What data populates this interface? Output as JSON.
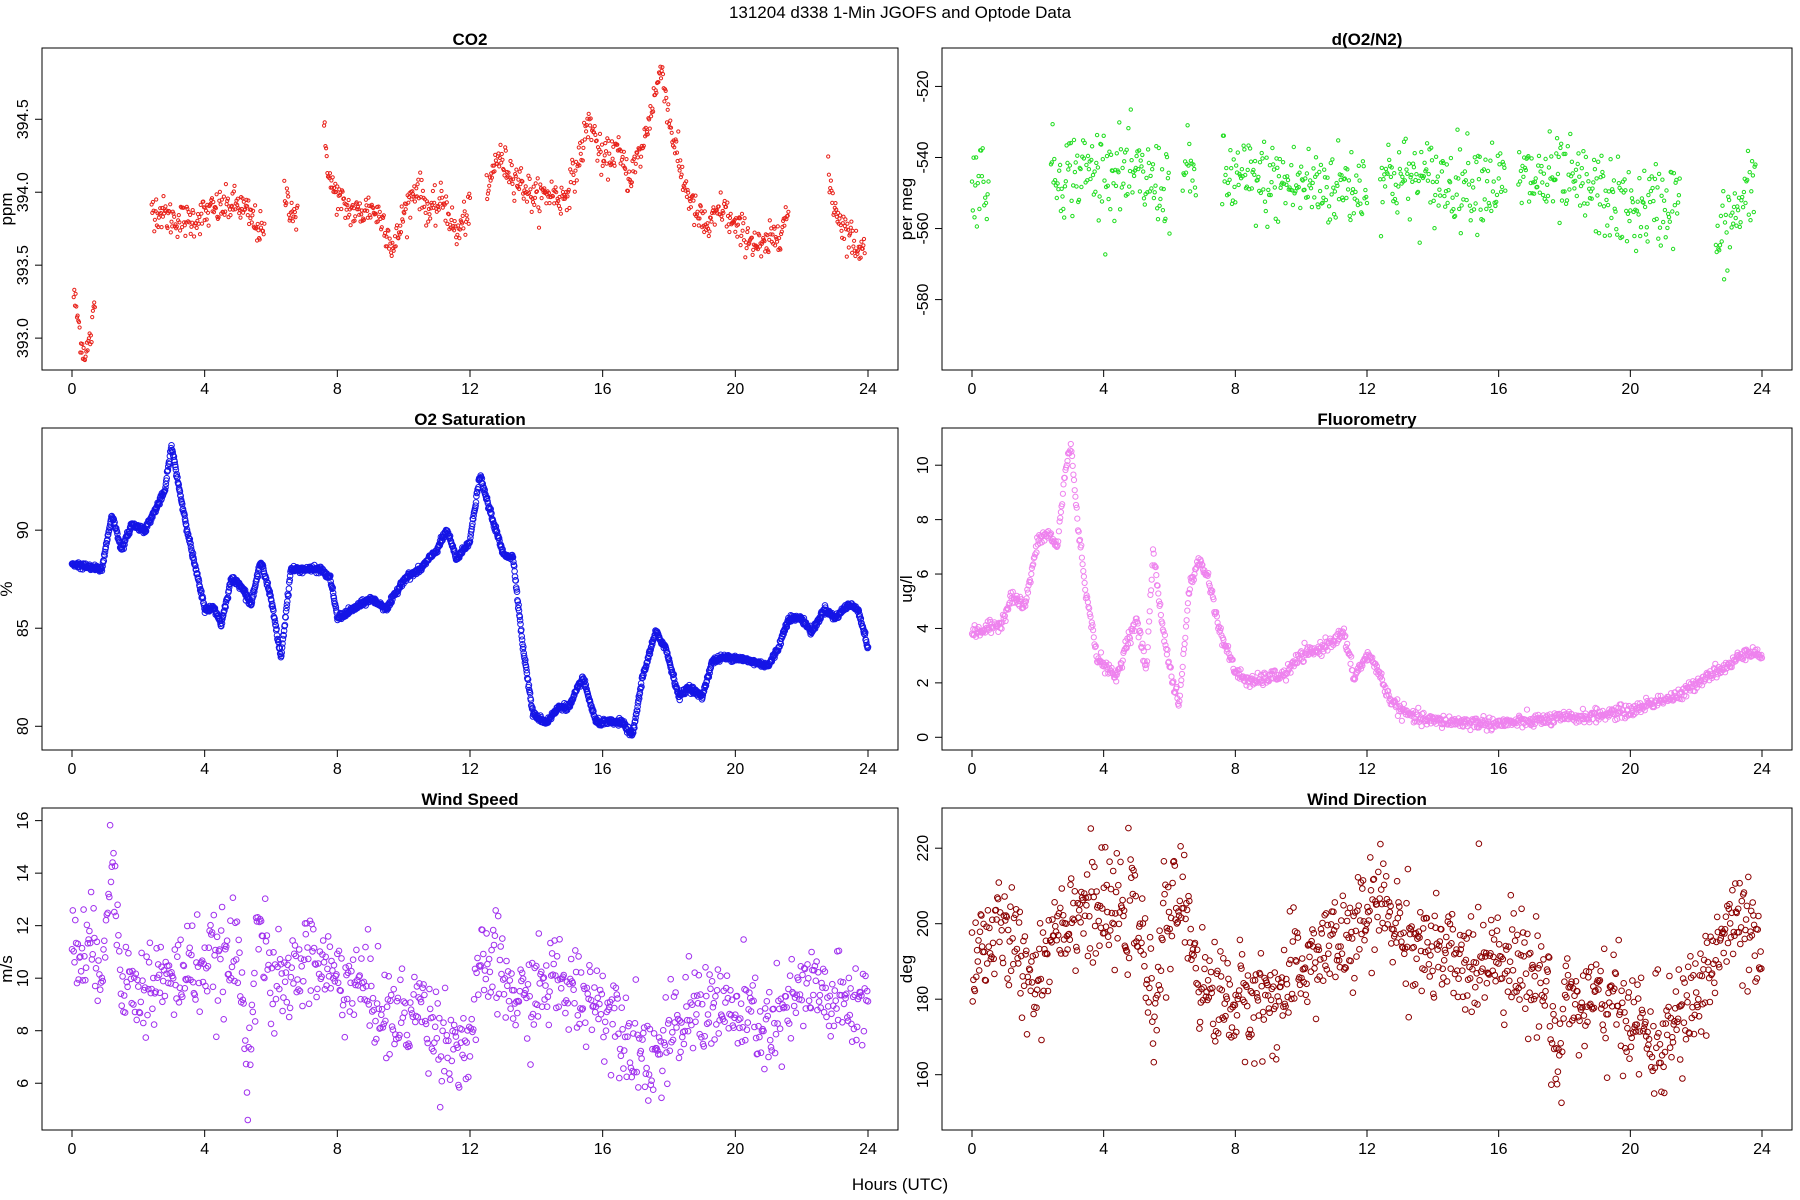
{
  "figure": {
    "title": "131204   d338   1-Min  JGOFS and Optode Data",
    "xlabel": "Hours (UTC)"
  },
  "chart_data": [
    {
      "id": "co2",
      "type": "scatter",
      "title": "CO2",
      "xlabel": "Hours (UTC)",
      "ylabel": "ppm",
      "color": "#e8221b",
      "xlim": [
        0,
        24
      ],
      "ylim": [
        392.85,
        394.92
      ],
      "xticks": [
        "0",
        "4",
        "8",
        "12",
        "16",
        "20",
        "24"
      ],
      "yticks": [
        "393.0",
        "393.5",
        "394.0",
        "394.5"
      ],
      "segments": [
        {
          "x": [
            0.05,
            0.2,
            0.3,
            0.4,
            0.5,
            0.6,
            0.7
          ],
          "y": [
            393.3,
            393.1,
            392.95,
            392.88,
            392.95,
            393.05,
            393.25
          ]
        },
        {
          "x": [
            2.4,
            3.0,
            3.5,
            4.0,
            4.5,
            5.0,
            5.5,
            5.8
          ],
          "y": [
            393.9,
            393.82,
            393.8,
            393.85,
            393.9,
            393.92,
            393.8,
            393.7
          ]
        },
        {
          "x": [
            6.4,
            6.6,
            6.8
          ],
          "y": [
            394.0,
            393.9,
            393.82
          ]
        },
        {
          "x": [
            7.6,
            7.8,
            8.2,
            8.6,
            9.0,
            9.4,
            9.7,
            10.0,
            10.4,
            10.8,
            11.2,
            11.6,
            12.0
          ],
          "y": [
            394.4,
            394.05,
            393.9,
            393.85,
            393.9,
            393.8,
            393.6,
            393.85,
            394.05,
            393.85,
            393.95,
            393.7,
            393.9
          ]
        },
        {
          "x": [
            12.5,
            12.8,
            13.2,
            13.6,
            14.0,
            14.4,
            14.8,
            15.2,
            15.6,
            16.0,
            16.4,
            16.8,
            17.2,
            17.6,
            17.8,
            18.0,
            18.4,
            18.8,
            19.2,
            19.6,
            20.0,
            20.4,
            20.8,
            21.2,
            21.6
          ],
          "y": [
            393.95,
            394.25,
            394.15,
            394.05,
            393.95,
            394.0,
            393.95,
            394.15,
            394.5,
            394.2,
            394.3,
            394.1,
            394.3,
            394.7,
            394.85,
            394.5,
            394.1,
            393.85,
            393.75,
            393.9,
            393.75,
            393.7,
            393.6,
            393.7,
            393.85
          ]
        },
        {
          "x": [
            22.8,
            23.0,
            23.3,
            23.6,
            23.9
          ],
          "y": [
            394.1,
            393.9,
            393.75,
            393.65,
            393.6
          ]
        }
      ]
    },
    {
      "id": "do2n2",
      "type": "scatter",
      "title": "d(O2/N2)",
      "xlabel": "Hours (UTC)",
      "ylabel": "per meg",
      "color": "#22dd22",
      "xlim": [
        0,
        24
      ],
      "ylim": [
        -597,
        -512
      ],
      "xticks": [
        "0",
        "4",
        "8",
        "12",
        "16",
        "20",
        "24"
      ],
      "yticks": [
        "-520",
        "-540",
        "-560",
        "-580"
      ],
      "yticklabels": [
        "-520",
        "-540",
        "-560",
        "-580"
      ],
      "ytickvals": [
        -520,
        -540,
        -560,
        -580
      ],
      "segments": [
        {
          "x": [
            0.0,
            0.5
          ],
          "y": [
            -546,
            -546
          ]
        },
        {
          "x": [
            2.4,
            4.0,
            5.0,
            6.0
          ],
          "y": [
            -545,
            -543,
            -546,
            -548
          ]
        },
        {
          "x": [
            6.4,
            6.8
          ],
          "y": [
            -545,
            -545
          ]
        },
        {
          "x": [
            7.6,
            9.0,
            10.5,
            12.0
          ],
          "y": [
            -546,
            -547,
            -548,
            -548
          ]
        },
        {
          "x": [
            12.4,
            14.0,
            15.5,
            16.2
          ],
          "y": [
            -545,
            -547,
            -546,
            -548
          ]
        },
        {
          "x": [
            16.6,
            18.0,
            19.0,
            20.0,
            21.0,
            21.5
          ],
          "y": [
            -546,
            -547,
            -550,
            -555,
            -553,
            -552
          ]
        },
        {
          "x": [
            22.6,
            23.2,
            23.8
          ],
          "y": [
            -565,
            -556,
            -548
          ]
        }
      ]
    },
    {
      "id": "o2sat",
      "type": "scatter",
      "title": "O2 Saturation",
      "xlabel": "Hours (UTC)",
      "ylabel": "%",
      "color": "#1515e6",
      "xlim": [
        0,
        24
      ],
      "ylim": [
        79.3,
        94.7
      ],
      "xticks": [
        "0",
        "4",
        "8",
        "12",
        "16",
        "20",
        "24"
      ],
      "yticks": [
        "80",
        "85",
        "90"
      ],
      "segments": [
        {
          "x": [
            0,
            0.5,
            0.9,
            1.2,
            1.5,
            1.8,
            2.2,
            2.5,
            2.8,
            3.0,
            3.3,
            3.6,
            4.0,
            4.3,
            4.5,
            4.8,
            5.1,
            5.4,
            5.7,
            6.0,
            6.3,
            6.6,
            7.0,
            7.5,
            7.8,
            8.0,
            8.5,
            9.0,
            9.5,
            10.0,
            10.5,
            11.0,
            11.3,
            11.6,
            12.0,
            12.3,
            12.6,
            13.0,
            13.3,
            13.6,
            13.9,
            14.3,
            14.7,
            15.0,
            15.4,
            15.8,
            16.2,
            16.6,
            16.9,
            17.2,
            17.6,
            17.9,
            18.3,
            18.6,
            19.0,
            19.3,
            19.6,
            20.0,
            20.5,
            21.0,
            21.3,
            21.6,
            22.0,
            22.3,
            22.7,
            23.0,
            23.4,
            23.7,
            24.0
          ],
          "y": [
            88.3,
            88.1,
            88.0,
            90.8,
            89.0,
            90.3,
            90.0,
            91.0,
            92.0,
            94.3,
            91.5,
            89.0,
            86.0,
            86.0,
            85.2,
            87.5,
            87.2,
            86.2,
            88.5,
            86.5,
            83.5,
            88.0,
            88.0,
            88.0,
            87.5,
            85.5,
            86.0,
            86.5,
            86.0,
            87.5,
            88.0,
            89.0,
            90.0,
            88.5,
            89.5,
            92.8,
            91.0,
            88.8,
            88.6,
            84.0,
            80.6,
            80.2,
            81.0,
            81.0,
            82.5,
            80.2,
            80.2,
            80.2,
            79.5,
            82.5,
            84.8,
            84.0,
            81.5,
            82.0,
            81.5,
            83.3,
            83.5,
            83.5,
            83.3,
            83.1,
            84.0,
            85.5,
            85.5,
            84.8,
            86.0,
            85.5,
            86.2,
            86.0,
            84.0
          ]
        }
      ]
    },
    {
      "id": "fluor",
      "type": "scatter",
      "title": "Fluorometry",
      "xlabel": "Hours (UTC)",
      "ylabel": "ug/l",
      "color": "#ee82ee",
      "xlim": [
        0,
        24
      ],
      "ylim": [
        -0.1,
        11.0
      ],
      "xticks": [
        "0",
        "4",
        "8",
        "12",
        "16",
        "20",
        "24"
      ],
      "yticks": [
        "0",
        "2",
        "4",
        "6",
        "8",
        "10"
      ],
      "segments": [
        {
          "x": [
            0,
            0.5,
            0.9,
            1.2,
            1.6,
            2.0,
            2.3,
            2.6,
            2.8,
            3.0,
            3.2,
            3.5,
            3.8,
            4.1,
            4.4,
            4.7,
            5.0,
            5.3,
            5.5,
            5.8,
            6.1,
            6.3,
            6.6,
            6.9,
            7.2,
            7.5,
            8.0,
            8.5,
            9.0,
            9.5,
            10.0,
            10.5,
            11.0,
            11.3,
            11.6,
            12.0,
            12.3,
            12.6,
            13.0,
            13.5,
            14.0,
            15.0,
            16.0,
            17.0,
            18.0,
            19.0,
            19.5,
            20.0,
            20.5,
            21.0,
            21.5,
            22.0,
            22.5,
            23.0,
            23.5,
            24.0
          ],
          "y": [
            3.8,
            4.0,
            4.2,
            5.2,
            4.8,
            7.2,
            7.5,
            7.0,
            9.5,
            10.8,
            8.0,
            5.0,
            3.0,
            2.5,
            2.2,
            3.5,
            4.3,
            2.5,
            6.8,
            4.0,
            2.0,
            1.2,
            5.5,
            6.5,
            5.8,
            4.0,
            2.4,
            2.0,
            2.2,
            2.3,
            3.0,
            3.2,
            3.6,
            3.8,
            2.2,
            3.0,
            2.6,
            1.6,
            1.0,
            0.7,
            0.6,
            0.55,
            0.5,
            0.6,
            0.7,
            0.8,
            0.9,
            0.95,
            1.2,
            1.4,
            1.5,
            2.0,
            2.4,
            2.6,
            3.2,
            3.0
          ]
        }
      ]
    },
    {
      "id": "windspeed",
      "type": "scatter",
      "title": "Wind Speed",
      "xlabel": "Hours (UTC)",
      "ylabel": "m/s",
      "color": "#a030ee",
      "xlim": [
        0,
        24
      ],
      "ylim": [
        4.6,
        16.1
      ],
      "xticks": [
        "0",
        "4",
        "8",
        "12",
        "16",
        "20",
        "24"
      ],
      "yticks": [
        "6",
        "8",
        "10",
        "12",
        "14",
        "16"
      ],
      "segments": [
        {
          "x": [
            0,
            0.5,
            0.9,
            1.2,
            1.5,
            1.8,
            2.2,
            2.6,
            3.0,
            3.5,
            4.0,
            4.5,
            5.0,
            5.3,
            5.6,
            6.0,
            6.5,
            7.0,
            7.5,
            8.0,
            8.5,
            9.0,
            9.5,
            10.0,
            10.5,
            11.0,
            11.5,
            12.0,
            12.4,
            12.8,
            13.2,
            13.6,
            14.0,
            14.5,
            15.0,
            15.5,
            16.0,
            16.5,
            17.0,
            17.5,
            18.0,
            18.5,
            19.0,
            19.5,
            20.0,
            20.5,
            21.0,
            21.5,
            22.0,
            22.5,
            23.0,
            23.5,
            24.0
          ],
          "y": [
            11.0,
            11.0,
            10.8,
            14.5,
            10.5,
            9.5,
            9.5,
            10.0,
            9.8,
            10.5,
            10.5,
            10.5,
            11.0,
            6.5,
            12.5,
            9.5,
            9.8,
            10.8,
            10.5,
            10.0,
            9.8,
            9.5,
            8.5,
            8.5,
            9.0,
            8.0,
            7.5,
            7.5,
            10.5,
            10.5,
            9.5,
            9.0,
            9.5,
            10.0,
            9.5,
            9.5,
            9.0,
            8.5,
            7.5,
            7.0,
            7.5,
            8.5,
            9.0,
            9.0,
            8.5,
            8.5,
            8.0,
            8.5,
            9.5,
            9.5,
            9.0,
            9.0,
            9.0
          ]
        }
      ]
    },
    {
      "id": "winddir",
      "type": "scatter",
      "title": "Wind Direction",
      "xlabel": "Hours (UTC)",
      "ylabel": "deg",
      "color": "#8b0000",
      "xlim": [
        0,
        24
      ],
      "ylim": [
        148,
        228
      ],
      "xticks": [
        "0",
        "4",
        "8",
        "12",
        "16",
        "20",
        "24"
      ],
      "yticks": [
        "160",
        "180",
        "200",
        "220"
      ],
      "segments": [
        {
          "x": [
            0,
            0.5,
            1.0,
            1.5,
            2.0,
            2.5,
            3.0,
            3.5,
            4.0,
            4.5,
            5.0,
            5.5,
            5.8,
            6.0,
            6.3,
            6.6,
            7.0,
            7.5,
            8.0,
            8.5,
            9.0,
            9.5,
            10.0,
            10.5,
            11.0,
            11.5,
            12.0,
            12.5,
            13.0,
            13.5,
            14.0,
            14.5,
            15.0,
            15.5,
            16.0,
            16.5,
            17.0,
            17.5,
            17.8,
            18.0,
            18.5,
            19.0,
            19.5,
            20.0,
            20.5,
            21.0,
            21.5,
            22.0,
            22.5,
            23.0,
            23.5,
            24.0
          ],
          "y": [
            192,
            196,
            198,
            190,
            185,
            200,
            203,
            205,
            202,
            203,
            203,
            175,
            200,
            200,
            207,
            200,
            183,
            181,
            179,
            180,
            180,
            182,
            188,
            192,
            195,
            195,
            202,
            206,
            198,
            195,
            192,
            190,
            188,
            192,
            193,
            190,
            186,
            185,
            160,
            182,
            178,
            180,
            178,
            176,
            170,
            168,
            175,
            180,
            190,
            200,
            198,
            188
          ]
        }
      ]
    }
  ]
}
